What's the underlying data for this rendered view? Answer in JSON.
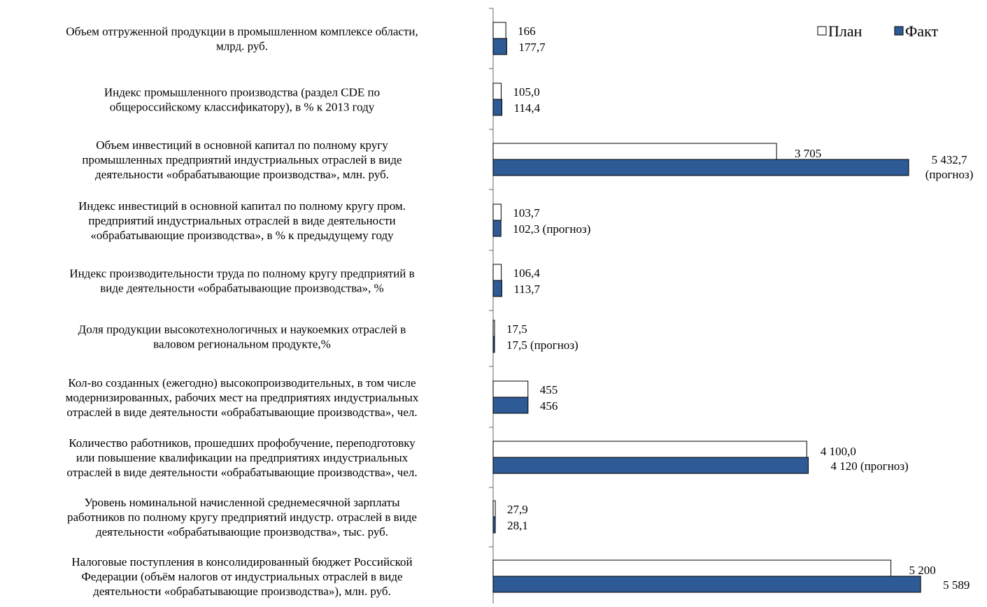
{
  "chart_data": {
    "type": "bar",
    "orientation": "horizontal",
    "legend": {
      "placement": "top-right",
      "entries": [
        {
          "name": "План",
          "color": "#ffffff"
        },
        {
          "name": "Факт",
          "color": "#2e5a95"
        }
      ]
    },
    "colors": {
      "plan_fill": "#ffffff",
      "fact_fill": "#2e5a95",
      "bar_stroke": "#000000"
    },
    "categories": [
      {
        "lines": [
          "Объем отгруженной продукции в промышленном комплексе области,",
          "млрд. руб."
        ],
        "plan": 166,
        "fact": 177.7,
        "plan_label": "166",
        "fact_label": "177,7"
      },
      {
        "lines": [
          "Индекс промышленного производства (раздел CDE по",
          "общероссийскому классификатору), в % к 2013 году"
        ],
        "plan": 105.0,
        "fact": 114.4,
        "plan_label": "105,0",
        "fact_label": "114,4"
      },
      {
        "lines": [
          "Объем инвестиций в основной капитал по полному кругу",
          "промышленных предприятий индустриальных отраслей в виде",
          "деятельности «обрабатывающие производства», млн. руб."
        ],
        "plan": 3705,
        "fact": 5432.7,
        "plan_label": "3 705",
        "fact_label": [
          "5 432,7",
          "(прогноз)"
        ]
      },
      {
        "lines": [
          "Индекс инвестиций в основной капитал по полному кругу пром.",
          "предприятий индустриальных отраслей в виде деятельности",
          "«обрабатывающие производства», в % к предыдущему году"
        ],
        "plan": 103.7,
        "fact": 102.3,
        "plan_label": "103,7",
        "fact_label": "102,3 (прогноз)"
      },
      {
        "lines": [
          "Индекс производительности труда по полному кругу предприятий в",
          "виде деятельности «обрабатывающие производства», %"
        ],
        "plan": 106.4,
        "fact": 113.7,
        "plan_label": "106,4",
        "fact_label": "113,7"
      },
      {
        "lines": [
          "Доля продукции высокотехнологичных и наукоемких отраслей в",
          "валовом региональном продукте,%"
        ],
        "plan": 17.5,
        "fact": 17.5,
        "plan_label": "17,5",
        "fact_label": "17,5 (прогноз)"
      },
      {
        "lines": [
          "Кол-во созданных (ежегодно) высокопроизводительных, в том числе",
          "модернизированных, рабочих мест на предприятиях индустриальных",
          "отраслей в виде деятельности «обрабатывающие производства», чел."
        ],
        "plan": 455,
        "fact": 456,
        "plan_label": "455",
        "fact_label": "456"
      },
      {
        "lines": [
          "Количество работников, прошедших профобучение, переподготовку",
          "или повышение квалификации на предприятиях индустриальных",
          "отраслей в виде деятельности «обрабатывающие производства», чел."
        ],
        "plan": 4100.0,
        "fact": 4120,
        "plan_label": "4 100,0",
        "fact_label": "4 120 (прогноз)"
      },
      {
        "lines": [
          "Уровень номинальной начисленной среднемесячной зарплаты",
          "работников по полному кругу предприятий индустр. отраслей в виде",
          "деятельности «обрабатывающие производства», тыс. руб."
        ],
        "plan": 27.9,
        "fact": 28.1,
        "plan_label": "27,9",
        "fact_label": "28,1"
      },
      {
        "lines": [
          "Налоговые поступления в консолидированный бюджет Российской",
          "Федерации (объём налогов от индустриальных отраслей в виде",
          "деятельности «обрабатывающие производства»), млн. руб."
        ],
        "plan": 5200,
        "fact": 5589,
        "plan_label": "5 200",
        "fact_label": "5 589"
      }
    ]
  }
}
